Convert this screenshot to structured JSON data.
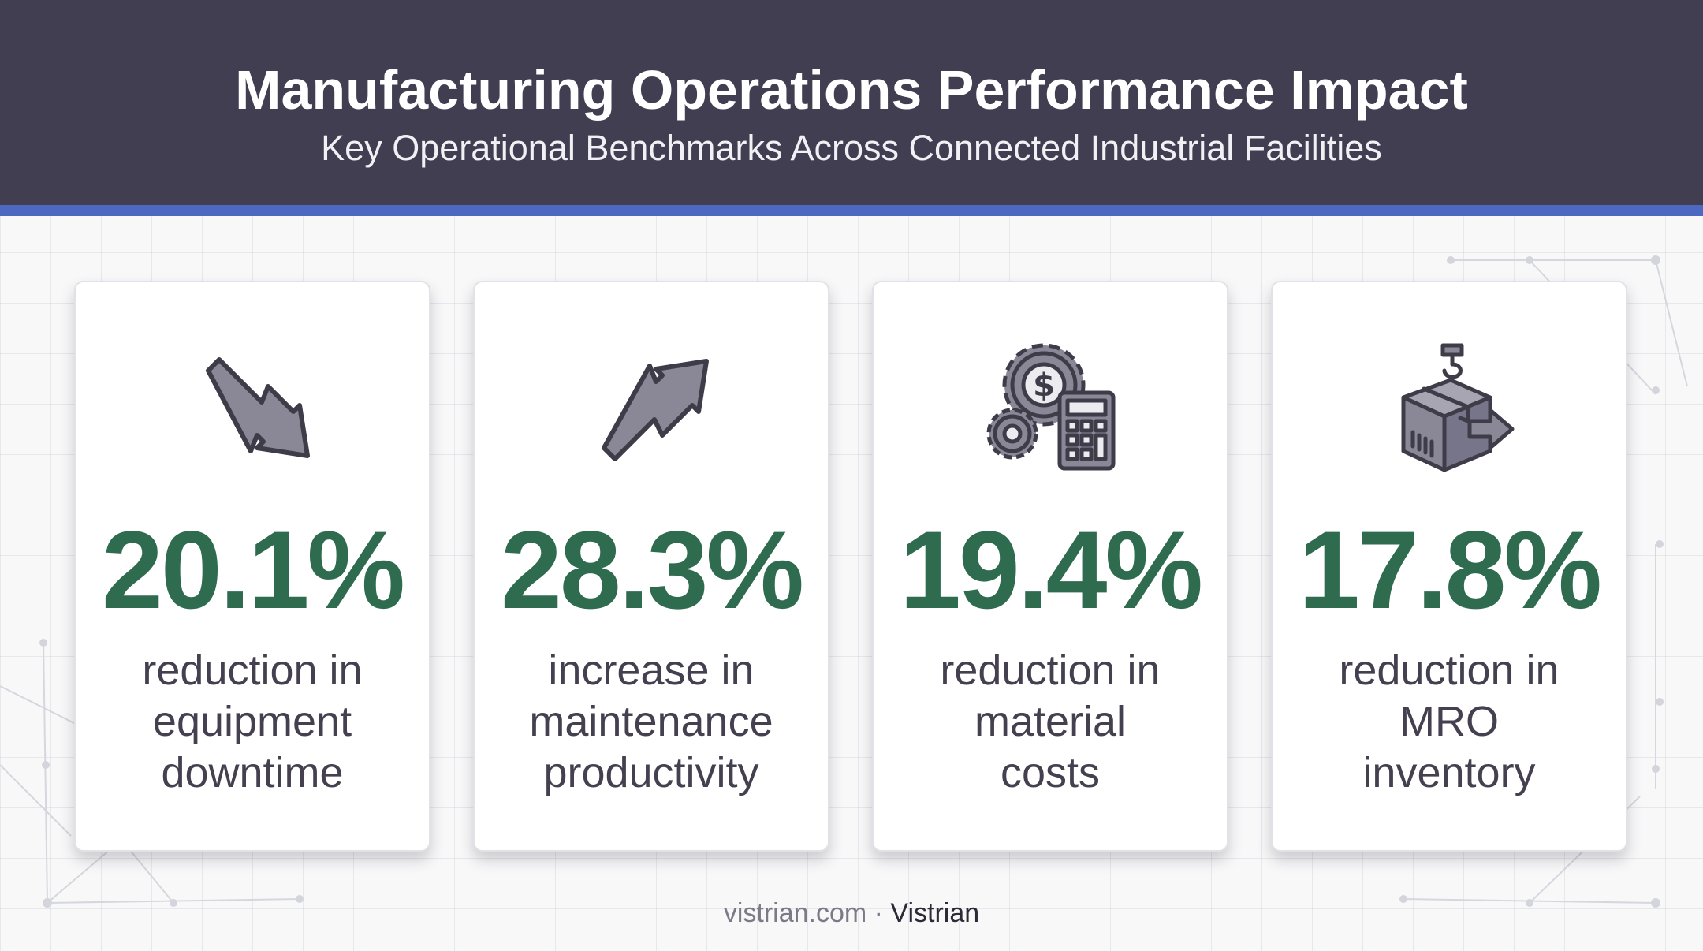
{
  "header": {
    "title": "Manufacturing Operations Performance Impact",
    "subtitle": "Key Operational Benchmarks Across Connected Industrial Facilities"
  },
  "colors": {
    "header_bg": "#423e52",
    "header_accent": "#4d68c0",
    "stat_green": "#2e6b4f",
    "icon_fill": "#8a8896",
    "icon_stroke": "#3f3c4a"
  },
  "cards": [
    {
      "icon": "trend-down-arrow-icon",
      "value": "20.1%",
      "lines": [
        "reduction in",
        "equipment",
        "downtime"
      ]
    },
    {
      "icon": "trend-up-arrow-icon",
      "value": "28.3%",
      "lines": [
        "increase in",
        "maintenance",
        "productivity"
      ]
    },
    {
      "icon": "gears-dollar-calculator-icon",
      "value": "19.4%",
      "lines": [
        "reduction in",
        "material",
        "costs"
      ]
    },
    {
      "icon": "crane-box-shipping-icon",
      "value": "17.8%",
      "lines": [
        "reduction in",
        "MRO",
        "inventory"
      ]
    }
  ],
  "footer": {
    "site": "vistrian.com",
    "separator": " · ",
    "brand": "Vistrian"
  }
}
